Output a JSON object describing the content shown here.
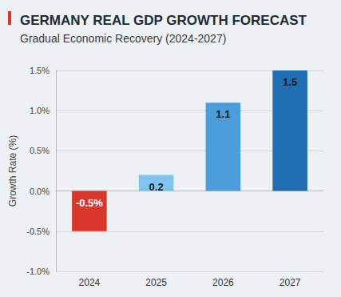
{
  "chart_data": {
    "type": "bar",
    "title": "GERMANY REAL GDP GROWTH FORECAST",
    "subtitle": "Gradual Economic Recovery (2024-2027)",
    "y_label": "Growth Rate (%)",
    "categories": [
      "2024",
      "2025",
      "2026",
      "2027"
    ],
    "values": [
      -0.5,
      0.2,
      1.1,
      1.5
    ],
    "value_labels": [
      "-0.5%",
      "0.2",
      "1.1",
      "1.5"
    ],
    "colors": [
      "#d9362c",
      "#7fc6ee",
      "#4c9ddb",
      "#1f6db3"
    ],
    "ylim": [
      -1.0,
      1.5
    ],
    "yticks": [
      {
        "value": -1.0,
        "label": "-1.0%"
      },
      {
        "value": -0.5,
        "label": "-0.5%"
      },
      {
        "value": 0,
        "label": "0.0%"
      },
      {
        "value": 0.5,
        "label": "0.5%"
      },
      {
        "value": 1.0,
        "label": "1.0%"
      },
      {
        "value": 1.5,
        "label": "1.5%"
      }
    ],
    "grid": true,
    "data_labels": true
  }
}
